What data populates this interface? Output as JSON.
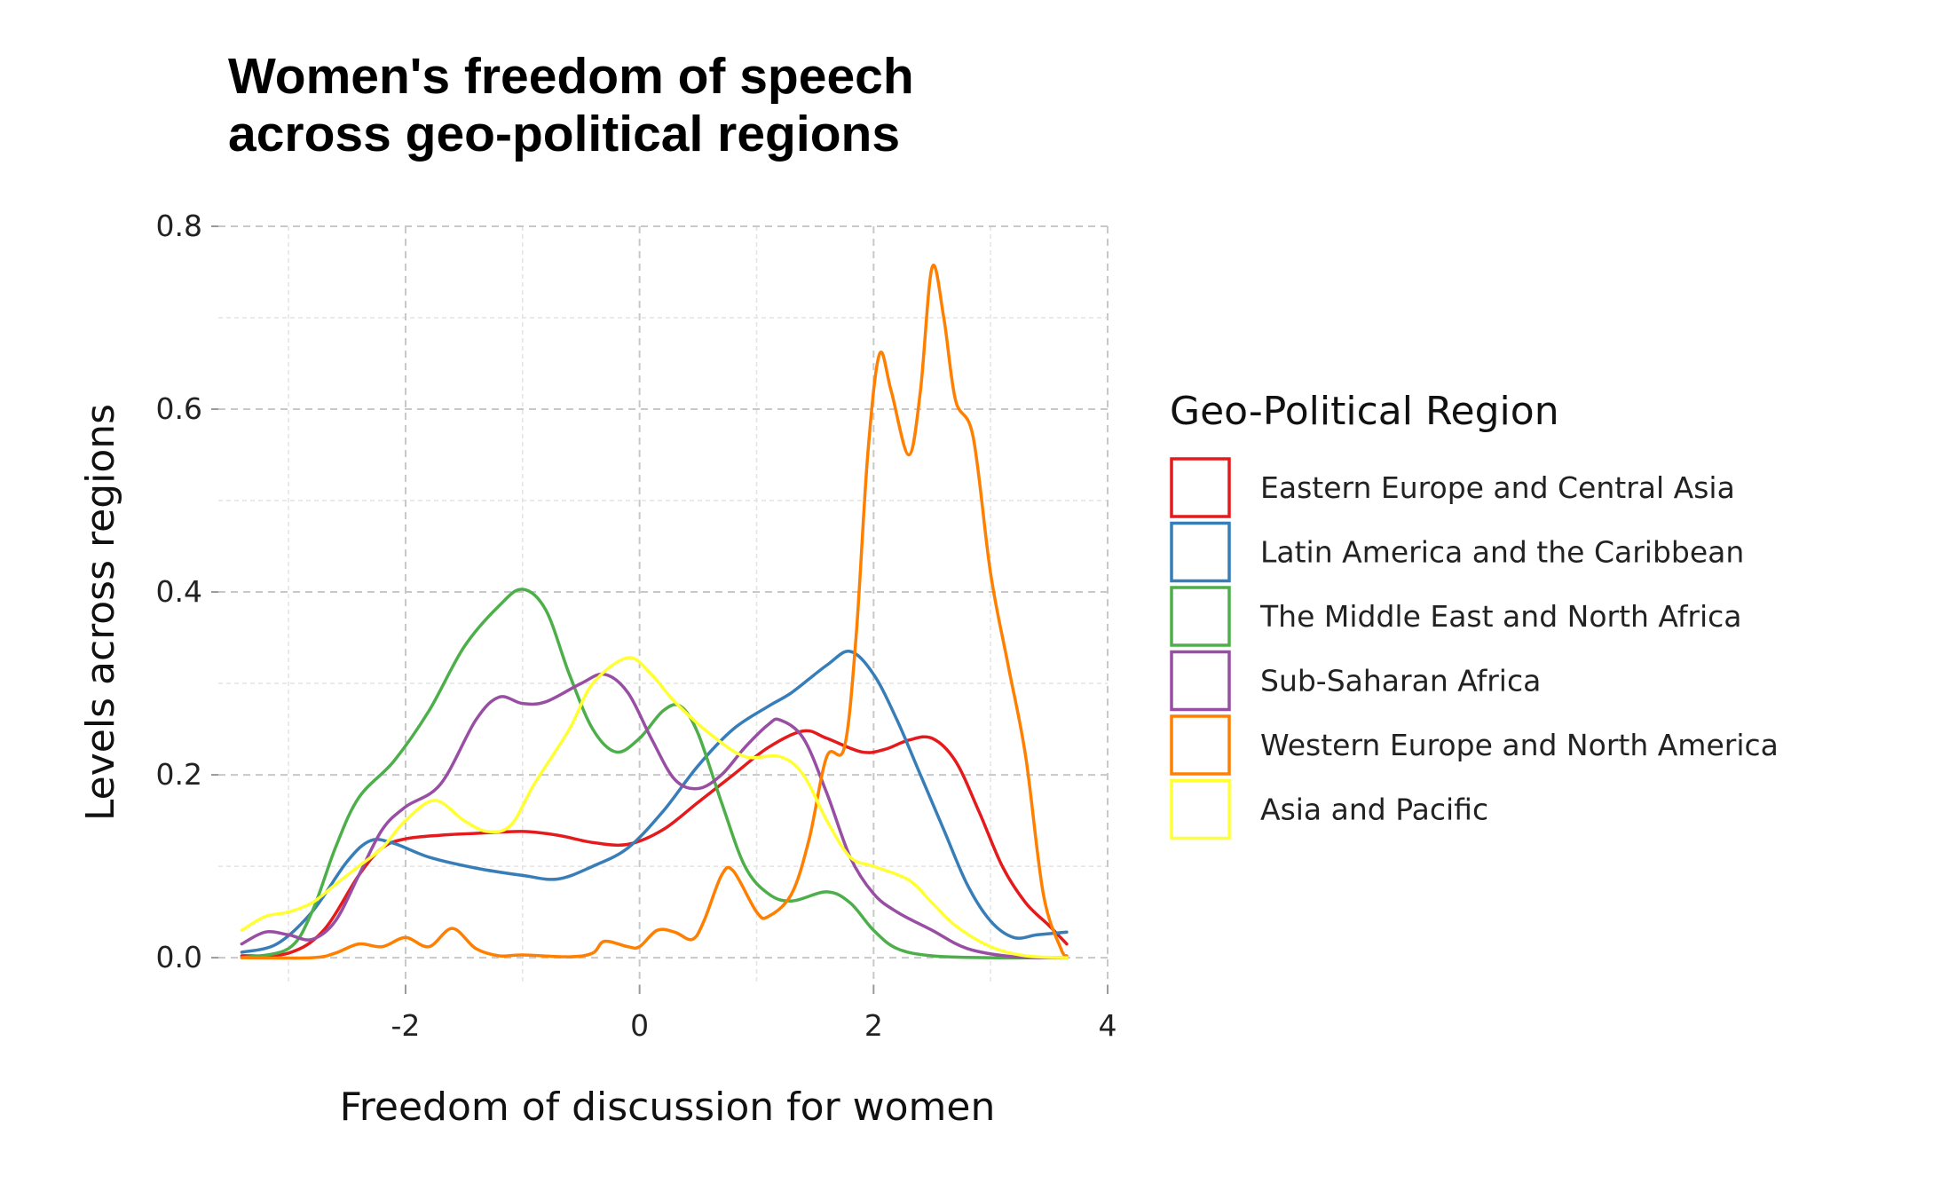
{
  "chart_data": {
    "type": "line",
    "title_lines": [
      "Women's freedom of speech",
      "across geo-political regions"
    ],
    "xlabel": "Freedom of discussion for women",
    "ylabel": "Levels across regions",
    "xlim": [
      -3.6,
      4.0
    ],
    "ylim": [
      -0.03,
      0.8
    ],
    "x_ticks": [
      -2,
      0,
      2,
      4
    ],
    "y_ticks": [
      0.0,
      0.2,
      0.4,
      0.6,
      0.8
    ],
    "x_tick_labels": [
      "-2",
      "0",
      "2",
      "4"
    ],
    "y_tick_labels": [
      "0.0",
      "0.2",
      "0.4",
      "0.6",
      "0.8"
    ],
    "grid": true,
    "legend": {
      "title": "Geo-Political Region",
      "placement": "right"
    },
    "series": [
      {
        "name": "Eastern Europe and Central Asia",
        "color": "#E41A1C",
        "points": [
          [
            -3.4,
            0.002
          ],
          [
            -3.0,
            0.005
          ],
          [
            -2.7,
            0.03
          ],
          [
            -2.4,
            0.09
          ],
          [
            -2.2,
            0.12
          ],
          [
            -2.0,
            0.13
          ],
          [
            -1.7,
            0.134
          ],
          [
            -1.4,
            0.136
          ],
          [
            -1.0,
            0.138
          ],
          [
            -0.7,
            0.134
          ],
          [
            -0.4,
            0.126
          ],
          [
            -0.1,
            0.124
          ],
          [
            0.2,
            0.14
          ],
          [
            0.5,
            0.17
          ],
          [
            0.8,
            0.2
          ],
          [
            1.1,
            0.23
          ],
          [
            1.4,
            0.248
          ],
          [
            1.6,
            0.24
          ],
          [
            1.9,
            0.225
          ],
          [
            2.1,
            0.228
          ],
          [
            2.3,
            0.238
          ],
          [
            2.5,
            0.24
          ],
          [
            2.7,
            0.215
          ],
          [
            2.9,
            0.16
          ],
          [
            3.1,
            0.1
          ],
          [
            3.3,
            0.06
          ],
          [
            3.5,
            0.035
          ],
          [
            3.65,
            0.015
          ]
        ]
      },
      {
        "name": "Latin America and the Caribbean",
        "color": "#377EB8",
        "points": [
          [
            -3.4,
            0.006
          ],
          [
            -3.1,
            0.015
          ],
          [
            -2.8,
            0.05
          ],
          [
            -2.5,
            0.105
          ],
          [
            -2.3,
            0.128
          ],
          [
            -2.1,
            0.125
          ],
          [
            -1.8,
            0.11
          ],
          [
            -1.4,
            0.098
          ],
          [
            -1.0,
            0.09
          ],
          [
            -0.7,
            0.086
          ],
          [
            -0.4,
            0.1
          ],
          [
            -0.1,
            0.12
          ],
          [
            0.2,
            0.16
          ],
          [
            0.5,
            0.21
          ],
          [
            0.8,
            0.25
          ],
          [
            1.1,
            0.275
          ],
          [
            1.3,
            0.29
          ],
          [
            1.6,
            0.32
          ],
          [
            1.8,
            0.335
          ],
          [
            2.0,
            0.31
          ],
          [
            2.2,
            0.26
          ],
          [
            2.4,
            0.2
          ],
          [
            2.6,
            0.14
          ],
          [
            2.8,
            0.08
          ],
          [
            3.0,
            0.04
          ],
          [
            3.2,
            0.022
          ],
          [
            3.4,
            0.025
          ],
          [
            3.65,
            0.028
          ]
        ]
      },
      {
        "name": "The Middle East and North Africa",
        "color": "#4DAF4A",
        "points": [
          [
            -3.4,
            0.0
          ],
          [
            -3.0,
            0.01
          ],
          [
            -2.8,
            0.05
          ],
          [
            -2.6,
            0.12
          ],
          [
            -2.4,
            0.175
          ],
          [
            -2.1,
            0.215
          ],
          [
            -1.8,
            0.27
          ],
          [
            -1.5,
            0.34
          ],
          [
            -1.2,
            0.385
          ],
          [
            -1.0,
            0.403
          ],
          [
            -0.8,
            0.38
          ],
          [
            -0.6,
            0.31
          ],
          [
            -0.4,
            0.25
          ],
          [
            -0.2,
            0.225
          ],
          [
            0.0,
            0.24
          ],
          [
            0.2,
            0.27
          ],
          [
            0.35,
            0.275
          ],
          [
            0.5,
            0.245
          ],
          [
            0.7,
            0.17
          ],
          [
            0.9,
            0.1
          ],
          [
            1.1,
            0.07
          ],
          [
            1.3,
            0.062
          ],
          [
            1.6,
            0.072
          ],
          [
            1.8,
            0.06
          ],
          [
            2.0,
            0.03
          ],
          [
            2.2,
            0.01
          ],
          [
            2.5,
            0.002
          ],
          [
            3.0,
            0.0
          ],
          [
            3.65,
            0.0
          ]
        ]
      },
      {
        "name": "Sub-Saharan Africa",
        "color": "#984EA3",
        "points": [
          [
            -3.4,
            0.015
          ],
          [
            -3.2,
            0.028
          ],
          [
            -3.0,
            0.025
          ],
          [
            -2.8,
            0.02
          ],
          [
            -2.6,
            0.04
          ],
          [
            -2.4,
            0.09
          ],
          [
            -2.2,
            0.14
          ],
          [
            -2.0,
            0.165
          ],
          [
            -1.7,
            0.19
          ],
          [
            -1.4,
            0.26
          ],
          [
            -1.2,
            0.285
          ],
          [
            -1.0,
            0.278
          ],
          [
            -0.8,
            0.28
          ],
          [
            -0.5,
            0.3
          ],
          [
            -0.3,
            0.31
          ],
          [
            -0.1,
            0.29
          ],
          [
            0.1,
            0.24
          ],
          [
            0.3,
            0.195
          ],
          [
            0.5,
            0.185
          ],
          [
            0.7,
            0.2
          ],
          [
            0.9,
            0.23
          ],
          [
            1.1,
            0.255
          ],
          [
            1.2,
            0.26
          ],
          [
            1.4,
            0.24
          ],
          [
            1.6,
            0.18
          ],
          [
            1.8,
            0.11
          ],
          [
            2.0,
            0.07
          ],
          [
            2.2,
            0.05
          ],
          [
            2.5,
            0.03
          ],
          [
            2.8,
            0.01
          ],
          [
            3.2,
            0.001
          ],
          [
            3.65,
            0.0
          ]
        ]
      },
      {
        "name": "Western Europe and North America",
        "color": "#FF7F00",
        "points": [
          [
            -3.4,
            0.0
          ],
          [
            -2.8,
            0.0
          ],
          [
            -2.6,
            0.005
          ],
          [
            -2.4,
            0.015
          ],
          [
            -2.2,
            0.012
          ],
          [
            -2.0,
            0.022
          ],
          [
            -1.8,
            0.012
          ],
          [
            -1.6,
            0.032
          ],
          [
            -1.4,
            0.01
          ],
          [
            -1.2,
            0.002
          ],
          [
            -1.0,
            0.003
          ],
          [
            -0.6,
            0.001
          ],
          [
            -0.4,
            0.005
          ],
          [
            -0.3,
            0.018
          ],
          [
            -0.1,
            0.012
          ],
          [
            0.0,
            0.012
          ],
          [
            0.15,
            0.03
          ],
          [
            0.3,
            0.028
          ],
          [
            0.45,
            0.02
          ],
          [
            0.55,
            0.04
          ],
          [
            0.7,
            0.09
          ],
          [
            0.8,
            0.095
          ],
          [
            1.0,
            0.05
          ],
          [
            1.1,
            0.045
          ],
          [
            1.3,
            0.07
          ],
          [
            1.45,
            0.13
          ],
          [
            1.6,
            0.22
          ],
          [
            1.75,
            0.23
          ],
          [
            1.85,
            0.35
          ],
          [
            1.95,
            0.55
          ],
          [
            2.05,
            0.66
          ],
          [
            2.15,
            0.62
          ],
          [
            2.3,
            0.55
          ],
          [
            2.4,
            0.62
          ],
          [
            2.5,
            0.755
          ],
          [
            2.6,
            0.7
          ],
          [
            2.7,
            0.61
          ],
          [
            2.85,
            0.57
          ],
          [
            3.0,
            0.42
          ],
          [
            3.15,
            0.32
          ],
          [
            3.3,
            0.22
          ],
          [
            3.45,
            0.07
          ],
          [
            3.6,
            0.01
          ],
          [
            3.65,
            0.002
          ]
        ]
      },
      {
        "name": "Asia and Pacific",
        "color": "#FFFF33",
        "points": [
          [
            -3.4,
            0.03
          ],
          [
            -3.2,
            0.045
          ],
          [
            -3.0,
            0.05
          ],
          [
            -2.8,
            0.06
          ],
          [
            -2.6,
            0.08
          ],
          [
            -2.4,
            0.1
          ],
          [
            -2.2,
            0.12
          ],
          [
            -2.0,
            0.15
          ],
          [
            -1.75,
            0.172
          ],
          [
            -1.5,
            0.15
          ],
          [
            -1.3,
            0.138
          ],
          [
            -1.1,
            0.145
          ],
          [
            -0.9,
            0.19
          ],
          [
            -0.6,
            0.25
          ],
          [
            -0.4,
            0.3
          ],
          [
            -0.1,
            0.328
          ],
          [
            0.1,
            0.31
          ],
          [
            0.3,
            0.28
          ],
          [
            0.6,
            0.245
          ],
          [
            0.9,
            0.22
          ],
          [
            1.2,
            0.22
          ],
          [
            1.4,
            0.2
          ],
          [
            1.6,
            0.15
          ],
          [
            1.8,
            0.11
          ],
          [
            2.0,
            0.1
          ],
          [
            2.3,
            0.085
          ],
          [
            2.5,
            0.06
          ],
          [
            2.7,
            0.035
          ],
          [
            3.0,
            0.012
          ],
          [
            3.3,
            0.002
          ],
          [
            3.65,
            0.0
          ]
        ]
      }
    ]
  }
}
